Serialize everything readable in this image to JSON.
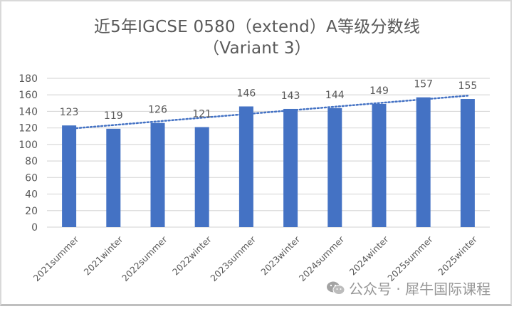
{
  "chart_data": {
    "type": "bar",
    "title": "近5年IGCSE 0580（extend）A等级分数线",
    "subtitle": "（Variant 3）",
    "categories": [
      "2021summer",
      "2021winter",
      "2022summer",
      "2022winter",
      "2023summer",
      "2023winter",
      "2024summer",
      "2024winter",
      "2025summer",
      "2025winter"
    ],
    "values": [
      123,
      119,
      126,
      121,
      146,
      143,
      144,
      149,
      157,
      155
    ],
    "series": [
      {
        "name": "A等级分数线",
        "values": [
          123,
          119,
          126,
          121,
          146,
          143,
          144,
          149,
          157,
          155
        ],
        "color": "#4472c4"
      }
    ],
    "trendline": {
      "type": "linear",
      "style": "dotted",
      "color": "#4472c4",
      "start": 119,
      "end": 159
    },
    "xlabel": "",
    "ylabel": "",
    "ylim": [
      0,
      180
    ],
    "yticks": [
      0,
      20,
      40,
      60,
      80,
      100,
      120,
      140,
      160,
      180
    ],
    "grid": true,
    "legend": "none",
    "data_labels": true
  },
  "title": {
    "line1": "近5年IGCSE 0580（extend）A等级分数线",
    "line2": "（Variant 3）"
  },
  "colors": {
    "bar": "#4472c4",
    "grid": "#d9d9d9",
    "text": "#595959"
  },
  "watermark": {
    "text": "公众号 · 犀牛国际课程",
    "icon": "wechat-icon"
  }
}
